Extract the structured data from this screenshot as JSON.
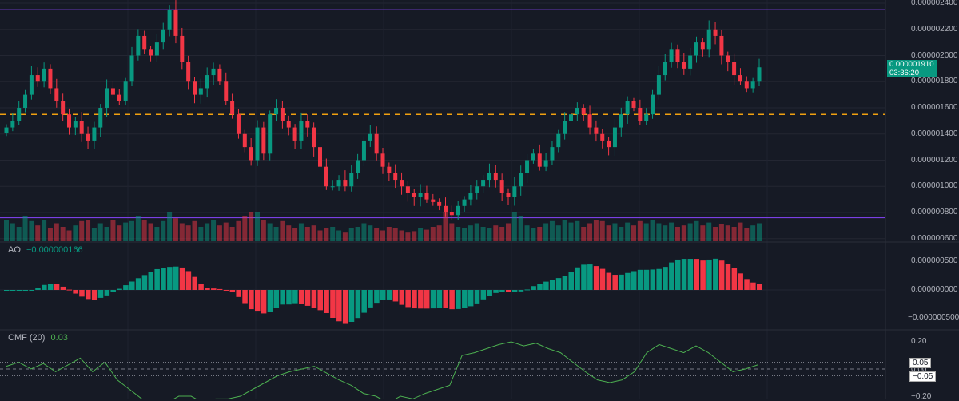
{
  "chart_data": {
    "type": "candlestick",
    "price_unit": "1e-9",
    "closes": [
      1450,
      1500,
      1600,
      1700,
      1850,
      1800,
      1900,
      1750,
      1650,
      1550,
      1450,
      1500,
      1400,
      1350,
      1450,
      1600,
      1750,
      1700,
      1650,
      1800,
      2000,
      2150,
      2050,
      2000,
      2100,
      2200,
      2350,
      2150,
      1950,
      1800,
      1700,
      1750,
      1850,
      1900,
      1800,
      1650,
      1550,
      1400,
      1300,
      1200,
      1450,
      1250,
      1550,
      1600,
      1500,
      1450,
      1350,
      1500,
      1450,
      1300,
      1150,
      1000,
      1000,
      1050,
      1000,
      1100,
      1200,
      1350,
      1400,
      1250,
      1150,
      1100,
      1050,
      1000,
      950,
      920,
      950,
      900,
      880,
      850,
      800,
      780,
      850,
      900,
      950,
      1000,
      1050,
      1100,
      1050,
      950,
      920,
      1000,
      1100,
      1200,
      1250,
      1150,
      1200,
      1300,
      1400,
      1500,
      1550,
      1600,
      1550,
      1450,
      1400,
      1350,
      1300,
      1450,
      1550,
      1650,
      1600,
      1500,
      1550,
      1700,
      1850,
      1950,
      2050,
      1950,
      1900,
      2000,
      2100,
      2050,
      2200,
      2150,
      2000,
      1950,
      1850,
      1800,
      1750,
      1800,
      1910
    ],
    "volumes": [
      30,
      25,
      20,
      35,
      28,
      22,
      30,
      18,
      25,
      20,
      15,
      22,
      28,
      30,
      18,
      25,
      20,
      30,
      22,
      26,
      28,
      35,
      30,
      25,
      20,
      28,
      40,
      32,
      25,
      22,
      28,
      20,
      25,
      30,
      22,
      26,
      20,
      28,
      35,
      45,
      100,
      30,
      25,
      20,
      28,
      22,
      18,
      25,
      20,
      22,
      15,
      18,
      20,
      15,
      12,
      18,
      20,
      25,
      22,
      18,
      15,
      20,
      18,
      15,
      12,
      14,
      18,
      16,
      20,
      22,
      60,
      25,
      20,
      18,
      22,
      25,
      20,
      18,
      22,
      20,
      25,
      40,
      35,
      22,
      18,
      20,
      25,
      28,
      22,
      30,
      26,
      28,
      20,
      25,
      30,
      28,
      22,
      25,
      20,
      26,
      22,
      28,
      25,
      30,
      25,
      22,
      26,
      20,
      22,
      25,
      28,
      22,
      26,
      20,
      24,
      22,
      20,
      26,
      18,
      22,
      25
    ],
    "yaxis_ticks": [
      "0.000002400",
      "0.000002200",
      "0.000002000",
      "0.000001800",
      "0.000001600",
      "0.000001400",
      "0.000001200",
      "0.000001000",
      "0.000000800",
      "0.000000600"
    ],
    "yaxis_values": [
      2400,
      2200,
      2000,
      1800,
      1600,
      1400,
      1200,
      1000,
      800,
      600
    ],
    "hlines": [
      {
        "value": 2350,
        "color": "#7b3fe4",
        "style": "solid"
      },
      {
        "value": 760,
        "color": "#7b3fe4",
        "style": "solid"
      },
      {
        "value": 1550,
        "color": "#f0a010",
        "style": "dashed"
      }
    ],
    "last_price": "0.000001910",
    "countdown": "03:36:20",
    "ao": {
      "label": "AO",
      "value": "−0.000000166",
      "ticks": [
        "0.000000500",
        "0.000000000",
        "−0.000000500"
      ],
      "tick_values": [
        500,
        0,
        -500
      ]
    },
    "cmf": {
      "label": "CMF (20)",
      "value": "0.03",
      "ticks": [
        "0.20",
        "0.00",
        "−0.20"
      ],
      "tick_values": [
        0.2,
        0,
        -0.2
      ],
      "upper": "0.05",
      "lower": "−0.05",
      "values": [
        0.02,
        0.05,
        0.0,
        0.04,
        -0.02,
        0.03,
        0.08,
        -0.02,
        0.05,
        -0.08,
        -0.15,
        -0.22,
        -0.25,
        -0.25,
        -0.2,
        -0.2,
        -0.25,
        -0.22,
        -0.22,
        -0.2,
        -0.15,
        -0.1,
        -0.05,
        -0.02,
        0.0,
        0.02,
        -0.03,
        -0.08,
        -0.12,
        -0.18,
        -0.2,
        -0.25,
        -0.2,
        -0.22,
        -0.18,
        -0.15,
        -0.12,
        0.1,
        0.12,
        0.15,
        0.18,
        0.2,
        0.17,
        0.19,
        0.15,
        0.12,
        0.05,
        -0.02,
        -0.08,
        -0.1,
        -0.08,
        -0.02,
        0.12,
        0.18,
        0.15,
        0.12,
        0.17,
        0.12,
        0.05,
        -0.02,
        0.0,
        0.03
      ]
    },
    "colors": {
      "up": "#089981",
      "down": "#f23645",
      "cmf": "#4caf50"
    }
  }
}
